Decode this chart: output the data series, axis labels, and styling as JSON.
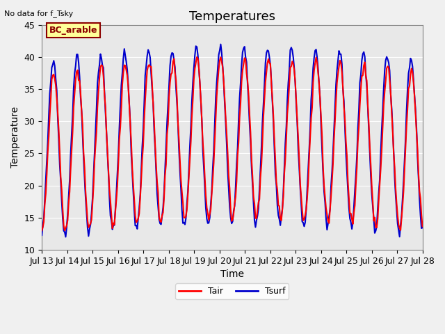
{
  "title": "Temperatures",
  "xlabel": "Time",
  "ylabel": "Temperature",
  "annotation_text": "No data for f_Tsky",
  "box_label": "BC_arable",
  "ylim": [
    10,
    45
  ],
  "y_ticks": [
    10,
    15,
    20,
    25,
    30,
    35,
    40,
    45
  ],
  "x_tick_labels": [
    "Jul 13",
    "Jul 14",
    "Jul 15",
    "Jul 16",
    "Jul 17",
    "Jul 18",
    "Jul 19",
    "Jul 20",
    "Jul 21",
    "Jul 22",
    "Jul 23",
    "Jul 24",
    "Jul 25",
    "Jul 26",
    "Jul 27",
    "Jul 28"
  ],
  "tair_color": "#ff0000",
  "tsurf_color": "#0000cc",
  "plot_bg_color": "#e8e8e8",
  "fig_bg_color": "#f0f0f0",
  "box_bg": "#ffff99",
  "box_edge": "#8B0000",
  "linewidth": 1.5,
  "title_fontsize": 13,
  "axis_label_fontsize": 10,
  "tick_label_fontsize": 9,
  "annot_fontsize": 8,
  "legend_fontsize": 9,
  "n_days": 16
}
